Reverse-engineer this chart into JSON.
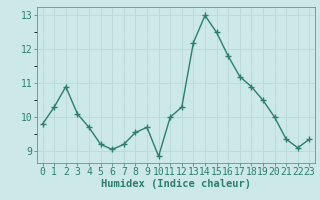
{
  "x": [
    0,
    1,
    2,
    3,
    4,
    5,
    6,
    7,
    8,
    9,
    10,
    11,
    12,
    13,
    14,
    15,
    16,
    17,
    18,
    19,
    20,
    21,
    22,
    23
  ],
  "y": [
    9.8,
    10.3,
    10.9,
    10.1,
    9.7,
    9.2,
    9.05,
    9.2,
    9.55,
    9.7,
    8.85,
    10.0,
    10.3,
    12.2,
    13.0,
    12.5,
    11.8,
    11.2,
    10.9,
    10.5,
    10.0,
    9.35,
    9.1,
    9.35
  ],
  "line_color": "#2e7d6e",
  "marker": "+",
  "bg_color": "#cce8e8",
  "grid_major_color": "#b8d8d8",
  "grid_minor_color": "#d0e8e8",
  "xlabel": "Humidex (Indice chaleur)",
  "xlim": [
    -0.5,
    23.5
  ],
  "ylim": [
    8.65,
    13.25
  ],
  "yticks": [
    9,
    10,
    11,
    12,
    13
  ],
  "xticks": [
    0,
    1,
    2,
    3,
    4,
    5,
    6,
    7,
    8,
    9,
    10,
    11,
    12,
    13,
    14,
    15,
    16,
    17,
    18,
    19,
    20,
    21,
    22,
    23
  ],
  "linewidth": 1.0,
  "markersize": 4,
  "markeredgewidth": 1.0,
  "xlabel_fontsize": 7.5,
  "tick_fontsize": 7,
  "spine_color": "#5a9a8a",
  "tick_color": "#2e7d6e"
}
